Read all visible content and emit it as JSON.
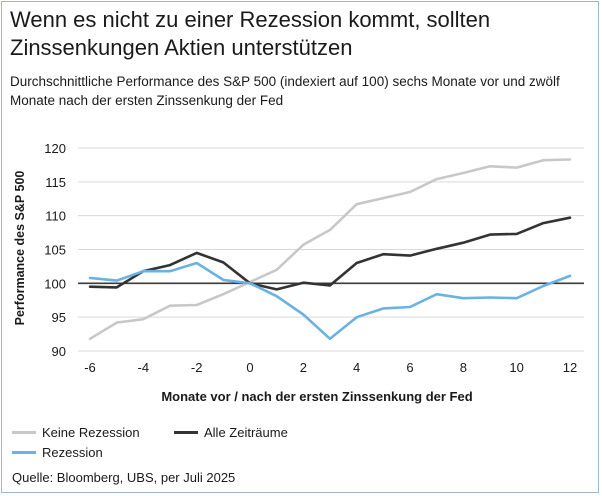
{
  "title": "Wenn es nicht zu einer Rezession kommt, sollten Zinssenkungen Aktien unterstützen",
  "subtitle": "Durchschnittliche Performance des S&P 500 (indexiert auf 100) sechs Monate vor und zwölf Monate nach der ersten Zinssenkung der Fed",
  "source": "Quelle: Bloomberg, UBS, per Juli 2025",
  "chart_data": {
    "type": "line",
    "xlabel": "Monate vor / nach der ersten Zinssenkung der Fed",
    "ylabel": "Performance des S&P 500",
    "xlim": [
      -6,
      12
    ],
    "ylim": [
      90,
      120
    ],
    "xticks": [
      -6,
      -4,
      -2,
      0,
      2,
      4,
      6,
      8,
      10,
      12
    ],
    "yticks": [
      90,
      95,
      100,
      105,
      110,
      115,
      120
    ],
    "grid": "horizontal",
    "baseline": 100,
    "legend_position": "bottom-left",
    "x": [
      -6,
      -5,
      -4,
      -3,
      -2,
      -1,
      0,
      1,
      2,
      3,
      4,
      5,
      6,
      7,
      8,
      9,
      10,
      11,
      12
    ],
    "series": [
      {
        "name": "Keine Rezession",
        "color": "#c8c8c8",
        "values": [
          91.8,
          94.2,
          94.7,
          96.7,
          96.8,
          98.4,
          100.2,
          102.0,
          105.7,
          107.9,
          111.7,
          112.6,
          113.5,
          115.4,
          116.3,
          117.3,
          117.1,
          118.2,
          118.3
        ]
      },
      {
        "name": "Alle Zeiträume",
        "color": "#333333",
        "values": [
          99.5,
          99.4,
          101.8,
          102.7,
          104.5,
          103.1,
          100.0,
          99.1,
          100.1,
          99.7,
          103.0,
          104.3,
          104.1,
          105.1,
          106.0,
          107.2,
          107.3,
          108.9,
          109.7
        ]
      },
      {
        "name": "Rezession",
        "color": "#6ab2e2",
        "values": [
          100.8,
          100.4,
          101.8,
          101.8,
          103.0,
          100.5,
          100.0,
          98.1,
          95.4,
          91.8,
          95.0,
          96.3,
          96.5,
          98.4,
          97.8,
          97.9,
          97.8,
          99.6,
          101.1
        ]
      }
    ]
  }
}
